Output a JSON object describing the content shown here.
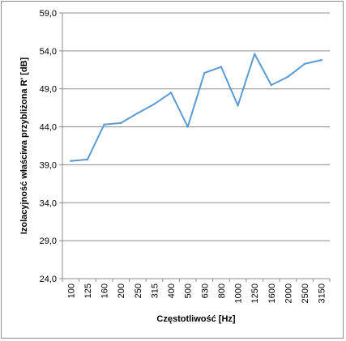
{
  "chart_data": {
    "type": "line",
    "xlabel": "Częstotliwość [Hz]",
    "ylabel": "Izolacyjność właściwa przybliżona R' [dB]",
    "ylim": [
      24,
      59
    ],
    "y_ticks": [
      "24,0",
      "29,0",
      "34,0",
      "39,0",
      "44,0",
      "49,0",
      "54,0",
      "59,0"
    ],
    "categories": [
      "100",
      "125",
      "160",
      "200",
      "250",
      "315",
      "400",
      "500",
      "630",
      "800",
      "1000",
      "1250",
      "1600",
      "2000",
      "2500",
      "3150"
    ],
    "series": [
      {
        "color": "#5b9bd5",
        "values": [
          39.5,
          39.7,
          44.3,
          44.5,
          45.8,
          47.0,
          48.5,
          44.0,
          51.1,
          51.9,
          46.8,
          53.6,
          49.5,
          50.6,
          52.3,
          52.8
        ]
      }
    ],
    "grid": true,
    "legend": "none"
  }
}
